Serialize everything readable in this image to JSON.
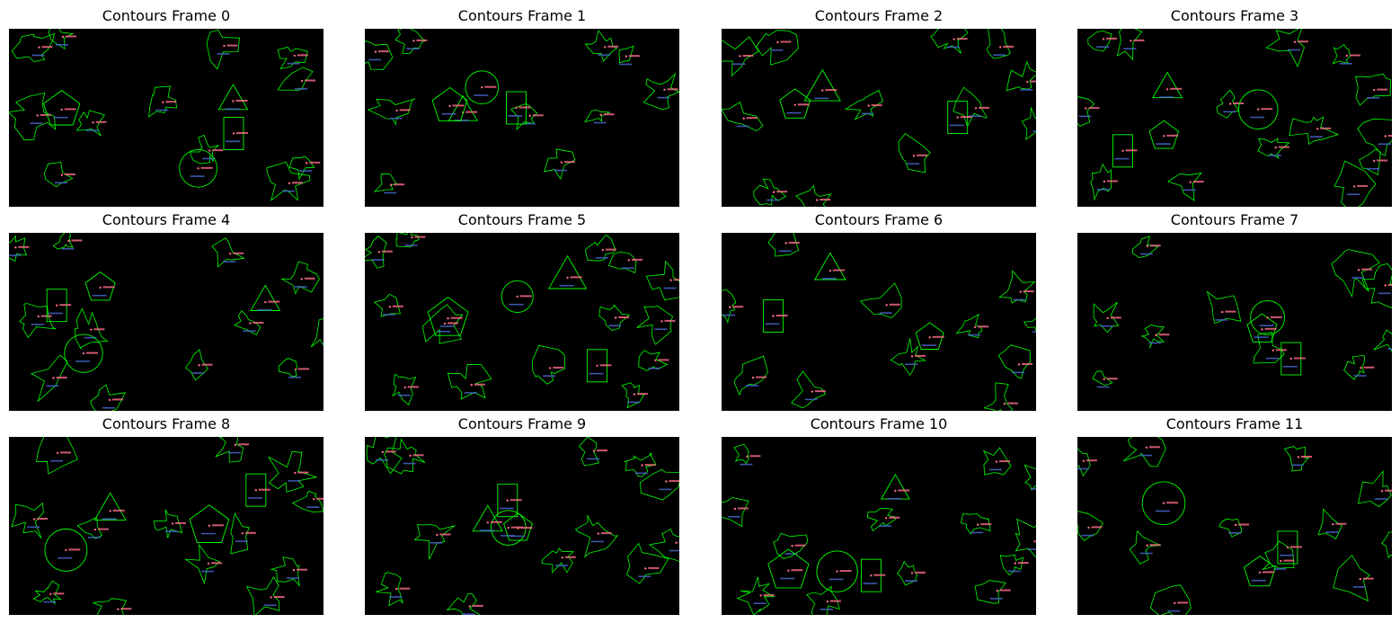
{
  "figure": {
    "background_color": "#ffffff",
    "frame_background": "#000000",
    "contour_color": "#00ff00",
    "label_color": "#ff6e8a",
    "coord_color": "#4a6bd6"
  },
  "panels": [
    {
      "title": "Contours Frame 0"
    },
    {
      "title": "Contours Frame 1"
    },
    {
      "title": "Contours Frame 2"
    },
    {
      "title": "Contours Frame 3"
    },
    {
      "title": "Contours Frame 4"
    },
    {
      "title": "Contours Frame 5"
    },
    {
      "title": "Contours Frame 6"
    },
    {
      "title": "Contours Frame 7"
    },
    {
      "title": "Contours Frame 8"
    },
    {
      "title": "Contours Frame 9"
    },
    {
      "title": "Contours Frame 10"
    },
    {
      "title": "Contours Frame 11"
    }
  ]
}
